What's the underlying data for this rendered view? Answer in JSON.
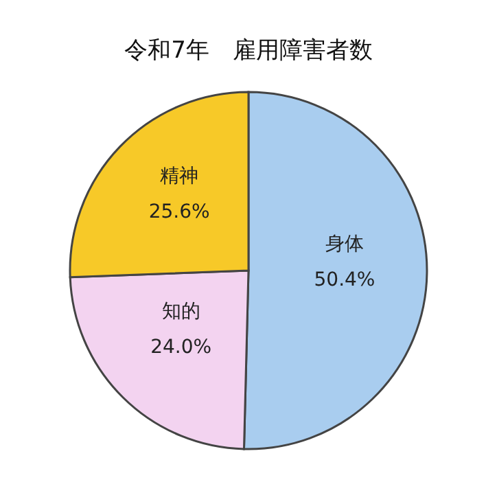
{
  "chart_data": {
    "type": "pie",
    "title": "令和7年　雇用障害者数",
    "categories": [
      "身体",
      "知的",
      "精神"
    ],
    "values": [
      50.4,
      24.0,
      25.6
    ],
    "value_labels": [
      "50.4%",
      "24.0%",
      "25.6%"
    ],
    "colors": [
      "#a9cdef",
      "#f3d3f0",
      "#f7c928"
    ],
    "legend": false
  }
}
